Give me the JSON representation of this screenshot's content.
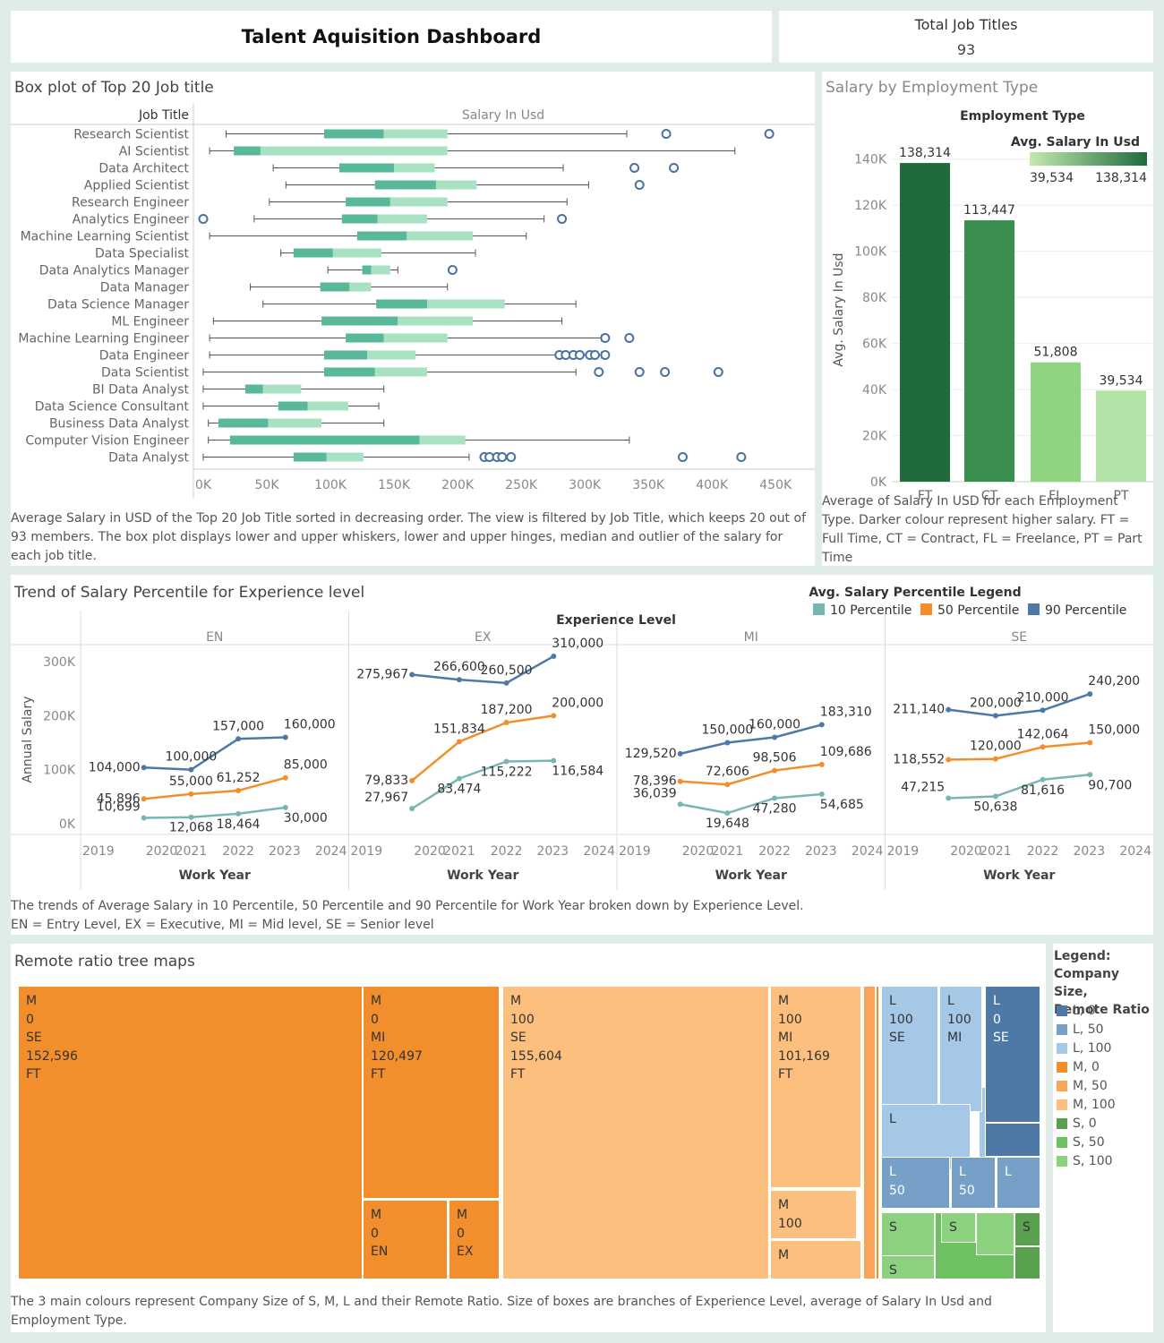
{
  "header": {
    "title": "Talent Aquisition Dashboard",
    "kpi_label": "Total Job Titles",
    "kpi_value": "93"
  },
  "box": {
    "title": "Box plot of Top 20 Job title",
    "caption": "Average Salary in USD of the Top 20 Job Title sorted in decreasing order. The view is filtered by Job Title, which keeps 20 out of 93 members. The box plot displays lower and upper whiskers, lower and upper hinges, median and outlier of the salary for each job title."
  },
  "emp": {
    "title": "Salary by Employment Type",
    "caption": "Average of Salary In USD for each Employment Type. Darker colour represent higher salary. FT = Full Time, CT = Contract, FL = Freelance, PT = Part Time"
  },
  "trend": {
    "title": "Trend of Salary Percentile for Experience level",
    "caption": "The trends of Average Salary in 10 Percentile, 50 Percentile and 90 Percentile for Work Year broken down by Experience Level.\nEN = Entry Level, EX = Executive, MI = Mid level, SE = Senior level"
  },
  "tree": {
    "title": "Remote ratio tree maps",
    "caption": "The 3 main colours represent Company Size of S, M, L and their Remote Ratio. Size of boxes are branches of  Experience Level, average of Salary In Usd and Employment Type.",
    "legend_title": "Legend:\nCompany Size,\nRemote Ratio",
    "legend": [
      {
        "label": "L, 0",
        "color": "#4e79a7"
      },
      {
        "label": "L, 50",
        "color": "#77a0c9"
      },
      {
        "label": "L, 100",
        "color": "#a5c8e6"
      },
      {
        "label": "M, 0",
        "color": "#f28e2b"
      },
      {
        "label": "M, 50",
        "color": "#f8a55a"
      },
      {
        "label": "M, 100",
        "color": "#fdbf7e"
      },
      {
        "label": "S, 0",
        "color": "#59a14f"
      },
      {
        "label": "S, 50",
        "color": "#6fbf63"
      },
      {
        "label": "S, 100",
        "color": "#8cd17d"
      }
    ],
    "tiles": [
      {
        "lines": [
          "M",
          "0",
          "SE",
          "152,596",
          "FT"
        ],
        "color": "#f28e2b"
      },
      {
        "lines": [
          "M",
          "0",
          "MI",
          "120,497",
          "FT"
        ],
        "color": "#f28e2b"
      },
      {
        "lines": [
          "M",
          "0",
          "EN"
        ],
        "color": "#f28e2b"
      },
      {
        "lines": [
          "M",
          "0",
          "EX"
        ],
        "color": "#f28e2b"
      },
      {
        "lines": [
          "M",
          "100",
          "SE",
          "155,604",
          "FT"
        ],
        "color": "#fdbf7e"
      },
      {
        "lines": [
          "M",
          "100",
          "MI",
          "101,169",
          "FT"
        ],
        "color": "#fdbf7e"
      },
      {
        "lines": [
          "M",
          "100"
        ],
        "color": "#fdbf7e"
      },
      {
        "lines": [
          "M"
        ],
        "color": "#fdbf7e"
      },
      {
        "lines": [
          "L",
          "100",
          "SE"
        ],
        "color": "#a5c8e6"
      },
      {
        "lines": [
          "L",
          "100",
          "MI"
        ],
        "color": "#a5c8e6"
      },
      {
        "lines": [
          "L"
        ],
        "color": "#a5c8e6"
      },
      {
        "lines": [
          "L",
          "0",
          "SE"
        ],
        "color": "#4e79a7"
      },
      {
        "lines": [
          "L",
          "50"
        ],
        "color": "#77a0c9"
      },
      {
        "lines": [
          "L",
          "50"
        ],
        "color": "#77a0c9"
      },
      {
        "lines": [
          "L"
        ],
        "color": "#77a0c9"
      },
      {
        "lines": [
          "S"
        ],
        "color": "#8cd17d"
      },
      {
        "lines": [
          "S"
        ],
        "color": "#8cd17d"
      },
      {
        "lines": [
          "S"
        ],
        "color": "#8cd17d"
      },
      {
        "lines": [
          "S"
        ],
        "color": "#59a14f"
      }
    ]
  },
  "chart_data": [
    {
      "type": "box",
      "title": "Box plot of Top 20 Job title",
      "row_header": "Job Title",
      "xlabel": "Salary In Usd",
      "xlim": [
        0,
        470000
      ],
      "x_ticks": [
        0,
        50000,
        100000,
        150000,
        200000,
        250000,
        300000,
        350000,
        400000,
        450000
      ],
      "x_tick_labels": [
        "0K",
        "50K",
        "100K",
        "150K",
        "200K",
        "250K",
        "300K",
        "350K",
        "400K",
        "450K"
      ],
      "colors": {
        "lower_box": "#5ab89a",
        "upper_box": "#a8e2c2",
        "outlier": "#4a72a0"
      },
      "rows": [
        {
          "label": "Research Scientist",
          "min": 18000,
          "q1": 95000,
          "median": 142000,
          "q3": 192000,
          "max": 333000,
          "outliers": [
            364000,
            445000
          ]
        },
        {
          "label": "AI Scientist",
          "min": 5000,
          "q1": 24000,
          "median": 45000,
          "q3": 192000,
          "max": 418000,
          "outliers": []
        },
        {
          "label": "Data Architect",
          "min": 55000,
          "q1": 107000,
          "median": 150000,
          "q3": 182000,
          "max": 283000,
          "outliers": [
            339000,
            370000
          ]
        },
        {
          "label": "Applied Scientist",
          "min": 65000,
          "q1": 135000,
          "median": 183000,
          "q3": 215000,
          "max": 303000,
          "outliers": [
            343000
          ]
        },
        {
          "label": "Research Engineer",
          "min": 52000,
          "q1": 112000,
          "median": 147000,
          "q3": 192000,
          "max": 286000,
          "outliers": []
        },
        {
          "label": "Analytics Engineer",
          "min": 40000,
          "q1": 109000,
          "median": 137000,
          "q3": 176000,
          "max": 268000,
          "outliers": [
            0,
            282000
          ]
        },
        {
          "label": "Machine Learning Scientist",
          "min": 5000,
          "q1": 121000,
          "median": 160000,
          "q3": 212000,
          "max": 254000,
          "outliers": []
        },
        {
          "label": "Data Specialist",
          "min": 61000,
          "q1": 71000,
          "median": 102000,
          "q3": 140000,
          "max": 214000,
          "outliers": []
        },
        {
          "label": "Data Analytics Manager",
          "min": 98000,
          "q1": 125000,
          "median": 132000,
          "q3": 147000,
          "max": 153000,
          "outliers": [
            196000
          ]
        },
        {
          "label": "Data Manager",
          "min": 37000,
          "q1": 92000,
          "median": 115000,
          "q3": 132000,
          "max": 192000,
          "outliers": []
        },
        {
          "label": "Data Science Manager",
          "min": 47000,
          "q1": 136000,
          "median": 176000,
          "q3": 237000,
          "max": 293000,
          "outliers": []
        },
        {
          "label": "ML Engineer",
          "min": 8000,
          "q1": 93000,
          "median": 153000,
          "q3": 212000,
          "max": 282000,
          "outliers": []
        },
        {
          "label": "Machine Learning Engineer",
          "min": 5000,
          "q1": 112000,
          "median": 142000,
          "q3": 192000,
          "max": 313000,
          "outliers": [
            316000,
            335000
          ]
        },
        {
          "label": "Data Engineer",
          "min": 5000,
          "q1": 95000,
          "median": 129000,
          "q3": 167000,
          "max": 313000,
          "outliers": [
            280000,
            285000,
            291000,
            296000,
            304000,
            308000,
            316000
          ]
        },
        {
          "label": "Data Scientist",
          "min": 0,
          "q1": 95000,
          "median": 135000,
          "q3": 176000,
          "max": 293000,
          "outliers": [
            311000,
            343000,
            363000,
            405000
          ]
        },
        {
          "label": "BI Data Analyst",
          "min": 0,
          "q1": 33000,
          "median": 47000,
          "q3": 77000,
          "max": 142000,
          "outliers": []
        },
        {
          "label": "Data Science Consultant",
          "min": 0,
          "q1": 59000,
          "median": 82000,
          "q3": 114000,
          "max": 138000,
          "outliers": []
        },
        {
          "label": "Business Data Analyst",
          "min": 4000,
          "q1": 12000,
          "median": 51000,
          "q3": 93000,
          "max": 142000,
          "outliers": []
        },
        {
          "label": "Computer Vision Engineer",
          "min": 4000,
          "q1": 21000,
          "median": 170000,
          "q3": 206000,
          "max": 335000,
          "outliers": []
        },
        {
          "label": "Data Analyst",
          "min": 0,
          "q1": 71000,
          "median": 97000,
          "q3": 126000,
          "max": 209000,
          "outliers": [
            221000,
            225000,
            231000,
            235000,
            242000,
            377000,
            423000
          ]
        }
      ]
    },
    {
      "type": "bar",
      "title": "Employment Type",
      "ylabel": "Avg. Salary In Usd",
      "categories": [
        "FT",
        "CT",
        "FL",
        "PT"
      ],
      "values": [
        138314,
        113447,
        51808,
        39534
      ],
      "colors": [
        "#1f6b3d",
        "#3a8f4f",
        "#8fd480",
        "#b3e3a6"
      ],
      "ylim": [
        0,
        150000
      ],
      "y_ticks": [
        0,
        20000,
        40000,
        60000,
        80000,
        100000,
        120000,
        140000
      ],
      "y_tick_labels": [
        "0K",
        "20K",
        "40K",
        "60K",
        "80K",
        "100K",
        "120K",
        "140K"
      ],
      "legend": {
        "title": "Avg. Salary In Usd",
        "min_label": "39,534",
        "max_label": "138,314",
        "gradient": [
          "#c3eaaf",
          "#1f6b3d"
        ]
      },
      "data_labels": [
        "138,314",
        "113,447",
        "51,808",
        "39,534"
      ]
    },
    {
      "type": "line",
      "title": "Experience Level",
      "ylabel": "Annual Salary",
      "xlabel": "Work Year",
      "ylim": [
        0,
        320000
      ],
      "y_ticks": [
        0,
        100000,
        200000,
        300000
      ],
      "y_tick_labels": [
        "0K",
        "100K",
        "200K",
        "300K"
      ],
      "legend_title": "Avg. Salary Percentile Legend",
      "x_ticks": [
        "2019",
        "2020",
        "2021",
        "2022",
        "2023",
        "2024"
      ],
      "series_meta": [
        {
          "name": "10 Percentile",
          "color": "#76b7b2"
        },
        {
          "name": "50 Percentile",
          "color": "#f28e2b"
        },
        {
          "name": "90 Percentile",
          "color": "#4e79a7"
        }
      ],
      "panels": [
        {
          "name": "EN",
          "x": [
            2020,
            2021,
            2022,
            2023
          ],
          "series": [
            {
              "values": [
                10699,
                12068,
                18464,
                30000
              ],
              "labels": [
                "10,699",
                "12,068",
                "18,464",
                "30,000"
              ]
            },
            {
              "values": [
                45896,
                55000,
                61252,
                85000
              ],
              "labels": [
                "45,896",
                "55,000",
                "61,252",
                "85,000"
              ]
            },
            {
              "values": [
                104000,
                100000,
                157000,
                160000
              ],
              "labels": [
                "104,000",
                "100,000",
                "157,000",
                "160,000"
              ]
            }
          ]
        },
        {
          "name": "EX",
          "x": [
            2020,
            2021,
            2022,
            2023
          ],
          "series": [
            {
              "values": [
                27967,
                83474,
                115222,
                116584
              ],
              "labels": [
                "27,967",
                "83,474",
                "115,222",
                "116,584"
              ]
            },
            {
              "values": [
                79833,
                151834,
                187200,
                200000
              ],
              "labels": [
                "79,833",
                "151,834",
                "187,200",
                "200,000"
              ]
            },
            {
              "values": [
                275967,
                266600,
                260500,
                310000
              ],
              "labels": [
                "275,967",
                "266,600",
                "260,500",
                "310,000"
              ]
            }
          ]
        },
        {
          "name": "MI",
          "x": [
            2020,
            2021,
            2022,
            2023
          ],
          "series": [
            {
              "values": [
                36039,
                19648,
                47280,
                54685
              ],
              "labels": [
                "36,039",
                "19,648",
                "47,280",
                "54,685"
              ]
            },
            {
              "values": [
                78396,
                72606,
                98506,
                109686
              ],
              "labels": [
                "78,396",
                "72,606",
                "98,506",
                "109,686"
              ]
            },
            {
              "values": [
                129520,
                150000,
                160000,
                183310
              ],
              "labels": [
                "129,520",
                "150,000",
                "160,000",
                "183,310"
              ]
            }
          ]
        },
        {
          "name": "SE",
          "x": [
            2020,
            2021,
            2022,
            2023
          ],
          "series": [
            {
              "values": [
                47215,
                50638,
                81616,
                90700
              ],
              "labels": [
                "47,215",
                "50,638",
                "81,616",
                "90,700"
              ]
            },
            {
              "values": [
                118552,
                120000,
                142064,
                150000
              ],
              "labels": [
                "118,552",
                "120,000",
                "142,064",
                "150,000"
              ]
            },
            {
              "values": [
                211140,
                200000,
                210000,
                240200
              ],
              "labels": [
                "211,140",
                "200,000",
                "210,000",
                "240,200"
              ]
            }
          ]
        }
      ]
    }
  ]
}
